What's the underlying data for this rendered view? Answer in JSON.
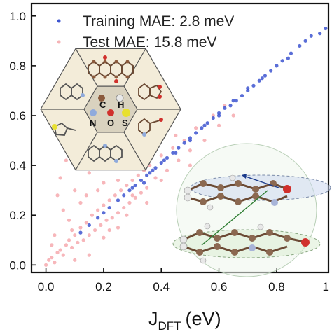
{
  "chart_data": {
    "type": "scatter",
    "title": "",
    "xlabel": {
      "main": "J",
      "sub": "DFT",
      "unit": "(eV)"
    },
    "ylabel": "",
    "xlim": [
      -0.05,
      0.98
    ],
    "ylim": [
      -0.03,
      1.05
    ],
    "x_ticks": [
      "0.0",
      "0.2",
      "0.4",
      "0.6",
      "0.8"
    ],
    "x_tick_values": [
      0.0,
      0.2,
      0.4,
      0.6,
      0.8
    ],
    "x_tick_partial": "1",
    "y_ticks": [
      "0.0",
      "0.2",
      "0.4",
      "0.6",
      "0.8",
      "1.0"
    ],
    "y_tick_values": [
      0.0,
      0.2,
      0.4,
      0.6,
      0.8,
      1.0
    ],
    "legend_position": "top-right",
    "series": [
      {
        "name": "Training MAE: 2.8 meV",
        "color": "#3d55d0",
        "values": [
          [
            0.12,
            0.13
          ],
          [
            0.15,
            0.16
          ],
          [
            0.18,
            0.19
          ],
          [
            0.2,
            0.21
          ],
          [
            0.22,
            0.23
          ],
          [
            0.25,
            0.26
          ],
          [
            0.27,
            0.28
          ],
          [
            0.29,
            0.3
          ],
          [
            0.31,
            0.32
          ],
          [
            0.33,
            0.34
          ],
          [
            0.35,
            0.36
          ],
          [
            0.37,
            0.38
          ],
          [
            0.38,
            0.39
          ],
          [
            0.4,
            0.41
          ],
          [
            0.42,
            0.43
          ],
          [
            0.44,
            0.45
          ],
          [
            0.46,
            0.47
          ],
          [
            0.48,
            0.49
          ],
          [
            0.5,
            0.51
          ],
          [
            0.52,
            0.53
          ],
          [
            0.54,
            0.55
          ],
          [
            0.56,
            0.57
          ],
          [
            0.58,
            0.59
          ],
          [
            0.6,
            0.61
          ],
          [
            0.62,
            0.63
          ],
          [
            0.64,
            0.64
          ],
          [
            0.66,
            0.66
          ],
          [
            0.68,
            0.68
          ],
          [
            0.7,
            0.7
          ],
          [
            0.72,
            0.72
          ],
          [
            0.74,
            0.74
          ],
          [
            0.76,
            0.76
          ],
          [
            0.78,
            0.78
          ],
          [
            0.8,
            0.8
          ],
          [
            0.82,
            0.82
          ],
          [
            0.85,
            0.85
          ],
          [
            0.88,
            0.88
          ],
          [
            0.92,
            0.92
          ],
          [
            0.95,
            0.93
          ],
          [
            0.97,
            0.95
          ],
          [
            0.9,
            0.9
          ],
          [
            0.84,
            0.83
          ],
          [
            0.75,
            0.75
          ],
          [
            0.7,
            0.71
          ],
          [
            0.65,
            0.66
          ],
          [
            0.6,
            0.6
          ],
          [
            0.55,
            0.56
          ],
          [
            0.5,
            0.5
          ],
          [
            0.45,
            0.45
          ],
          [
            0.41,
            0.42
          ],
          [
            0.36,
            0.37
          ],
          [
            0.34,
            0.33
          ],
          [
            0.3,
            0.31
          ]
        ]
      },
      {
        "name": "Test MAE: 15.8 meV",
        "color": "#f07a82",
        "values": [
          [
            0.0,
            0.0
          ],
          [
            0.01,
            0.02
          ],
          [
            0.02,
            0.03
          ],
          [
            0.03,
            0.01
          ],
          [
            0.04,
            0.05
          ],
          [
            0.05,
            0.06
          ],
          [
            0.06,
            0.04
          ],
          [
            0.07,
            0.08
          ],
          [
            0.08,
            0.1
          ],
          [
            0.09,
            0.07
          ],
          [
            0.1,
            0.12
          ],
          [
            0.11,
            0.09
          ],
          [
            0.12,
            0.15
          ],
          [
            0.13,
            0.1
          ],
          [
            0.14,
            0.17
          ],
          [
            0.15,
            0.12
          ],
          [
            0.16,
            0.2
          ],
          [
            0.17,
            0.14
          ],
          [
            0.18,
            0.22
          ],
          [
            0.19,
            0.16
          ],
          [
            0.2,
            0.24
          ],
          [
            0.21,
            0.18
          ],
          [
            0.22,
            0.26
          ],
          [
            0.23,
            0.19
          ],
          [
            0.24,
            0.28
          ],
          [
            0.25,
            0.21
          ],
          [
            0.26,
            0.3
          ],
          [
            0.27,
            0.23
          ],
          [
            0.28,
            0.32
          ],
          [
            0.29,
            0.25
          ],
          [
            0.3,
            0.34
          ],
          [
            0.31,
            0.27
          ],
          [
            0.32,
            0.36
          ],
          [
            0.33,
            0.29
          ],
          [
            0.34,
            0.38
          ],
          [
            0.35,
            0.31
          ],
          [
            0.36,
            0.4
          ],
          [
            0.38,
            0.35
          ],
          [
            0.4,
            0.44
          ],
          [
            0.42,
            0.38
          ],
          [
            0.44,
            0.47
          ],
          [
            0.46,
            0.42
          ],
          [
            0.48,
            0.5
          ],
          [
            0.5,
            0.46
          ],
          [
            0.52,
            0.55
          ],
          [
            0.55,
            0.5
          ],
          [
            0.58,
            0.6
          ],
          [
            0.6,
            0.56
          ],
          [
            0.62,
            0.64
          ],
          [
            0.65,
            0.6
          ],
          [
            0.05,
            0.35
          ],
          [
            0.07,
            0.42
          ],
          [
            0.1,
            0.3
          ],
          [
            0.15,
            0.37
          ],
          [
            0.2,
            0.33
          ],
          [
            0.12,
            0.25
          ],
          [
            0.18,
            0.3
          ],
          [
            0.25,
            0.34
          ],
          [
            0.3,
            0.28
          ],
          [
            0.28,
            0.2
          ],
          [
            0.35,
            0.25
          ],
          [
            0.08,
            0.18
          ],
          [
            0.03,
            0.12
          ],
          [
            0.02,
            0.08
          ],
          [
            0.15,
            0.04
          ],
          [
            0.2,
            0.11
          ],
          [
            0.25,
            0.15
          ],
          [
            0.1,
            0.02
          ],
          [
            0.35,
            0.42
          ],
          [
            0.4,
            0.34
          ],
          [
            0.45,
            0.52
          ],
          [
            0.5,
            0.4
          ],
          [
            0.22,
            0.14
          ],
          [
            0.32,
            0.4
          ],
          [
            0.14,
            0.28
          ],
          [
            0.06,
            0.22
          ],
          [
            0.09,
            0.14
          ],
          [
            0.04,
            0.28
          ]
        ]
      }
    ]
  }
}
